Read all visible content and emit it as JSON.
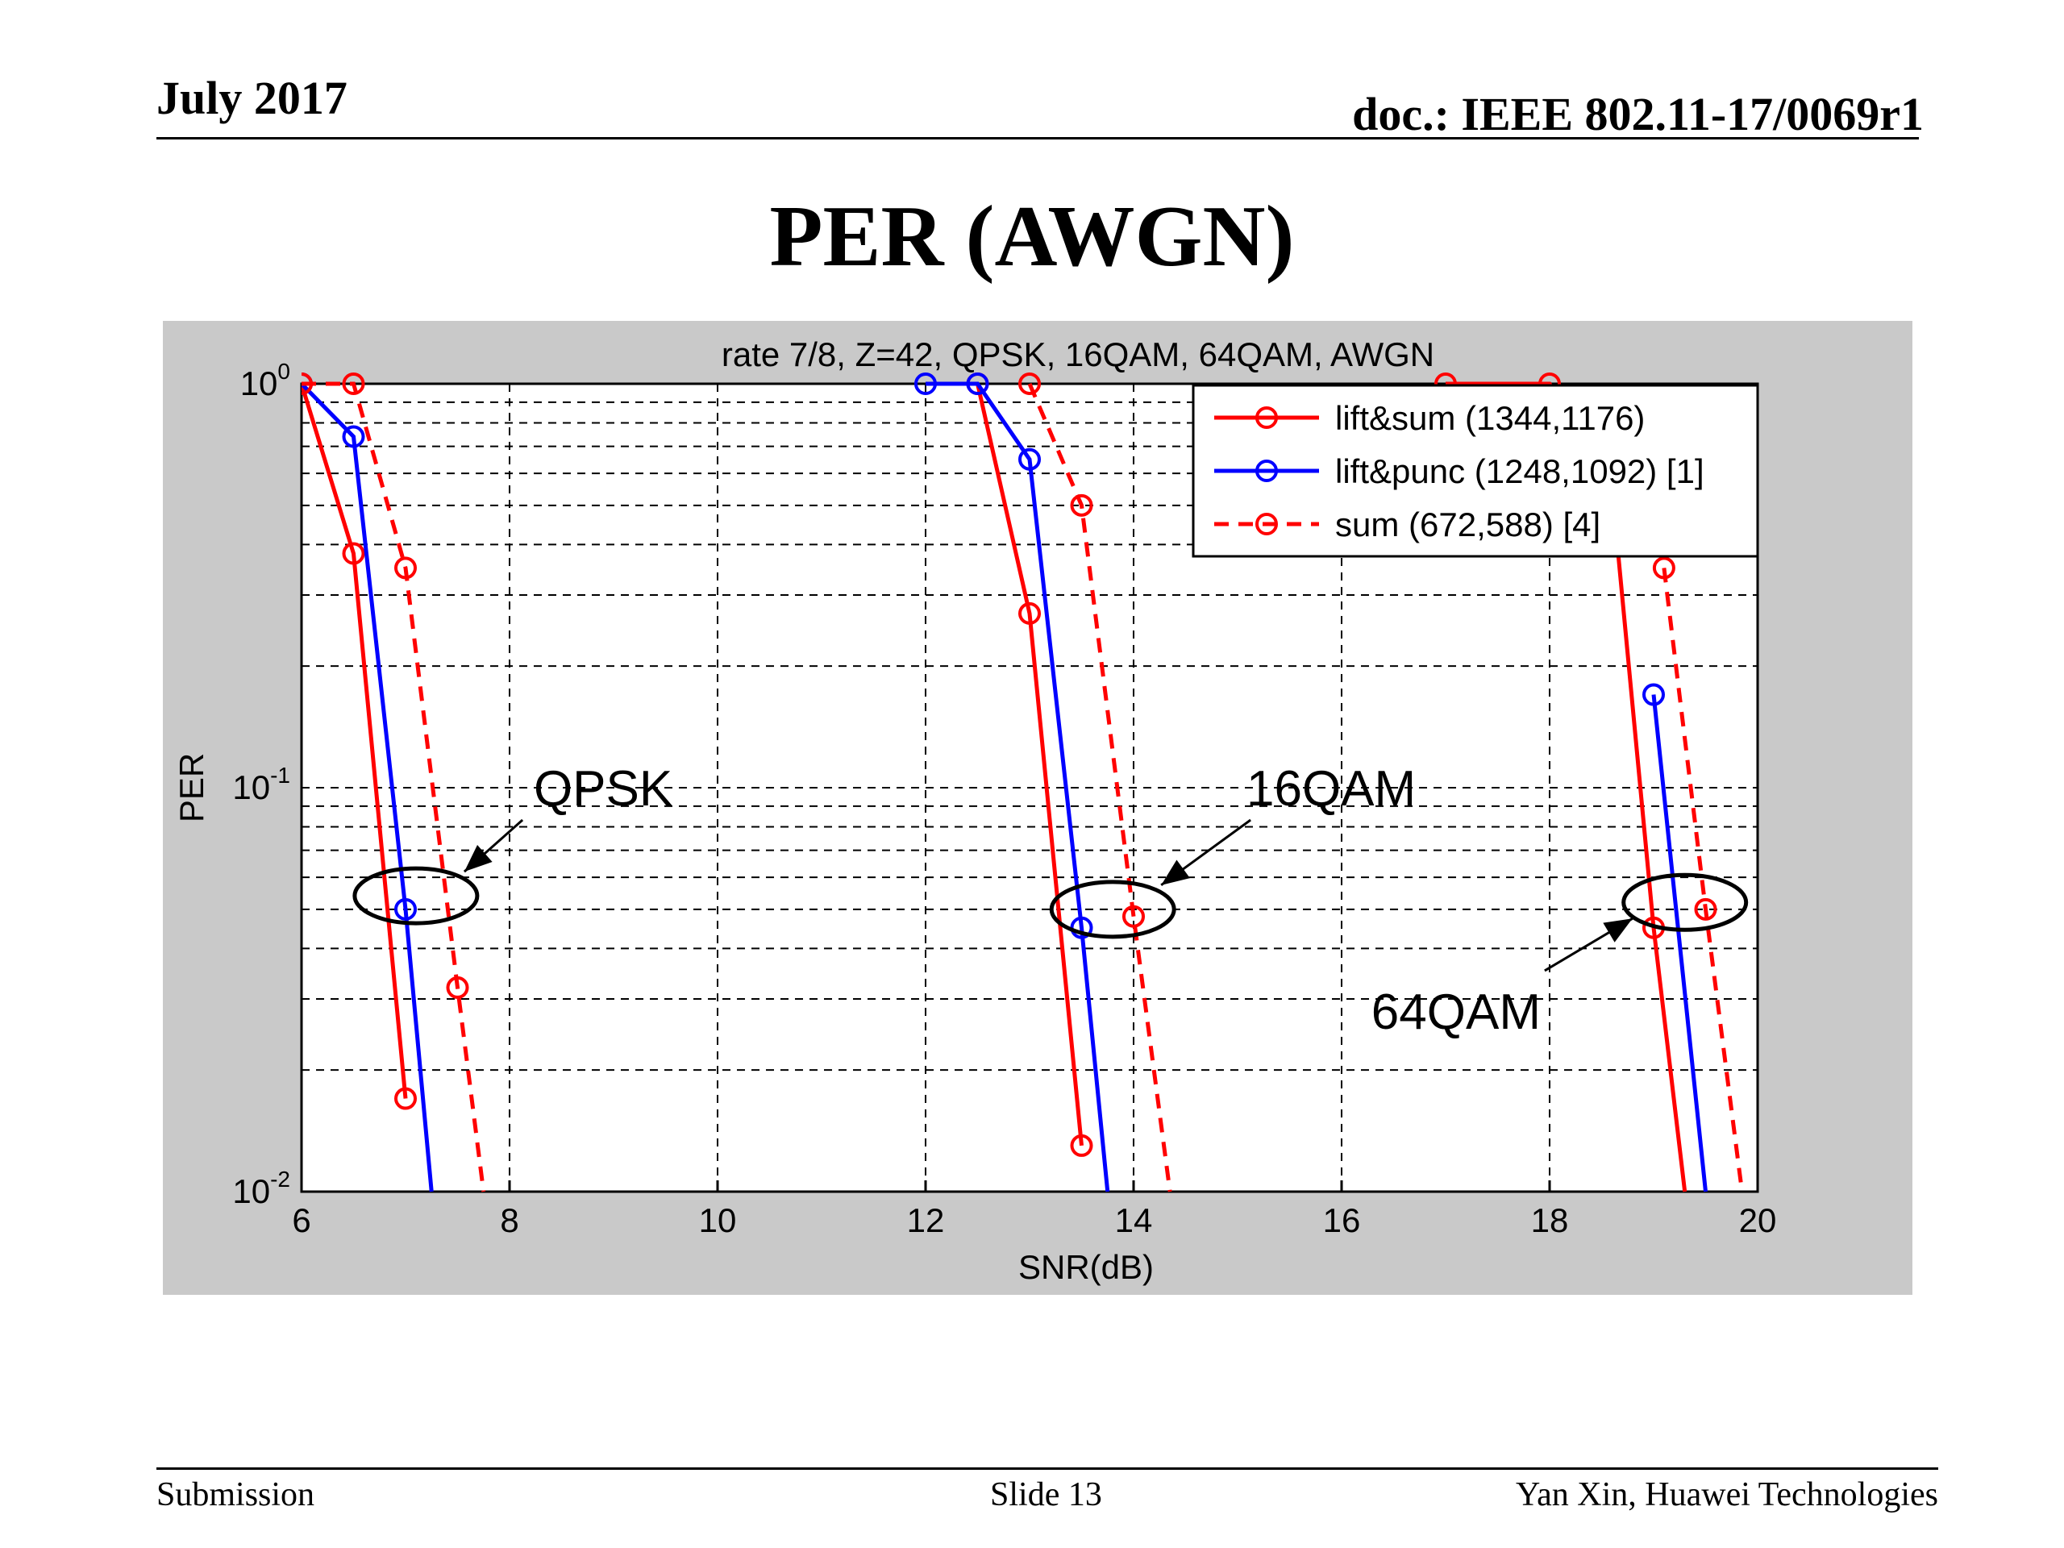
{
  "slide": {
    "date": "July 2017",
    "doc": "doc.: IEEE 802.11-17/0069r1",
    "title": "PER (AWGN)",
    "footer_left": "Submission",
    "footer_center": "Slide 13",
    "footer_right": "Yan Xin, Huawei Technologies"
  },
  "colors": {
    "red": "#ff0000",
    "blue": "#0000ff",
    "figure_bg": "#c9c9c9",
    "grid": "#000000"
  },
  "chart_data": {
    "type": "line",
    "title": "rate 7/8, Z=42, QPSK, 16QAM, 64QAM, AWGN",
    "xlabel": "SNR(dB)",
    "ylabel": "PER",
    "xlim": [
      6,
      20
    ],
    "ylim": [
      0.01,
      1
    ],
    "yscale": "log",
    "grid": true,
    "legend_position": "top-right",
    "x_ticks": [
      "6",
      "8",
      "10",
      "12",
      "14",
      "16",
      "18",
      "20"
    ],
    "y_ticks": [
      {
        "base": "10",
        "exp": "0",
        "value": 1
      },
      {
        "base": "10",
        "exp": "-1",
        "value": 0.1
      },
      {
        "base": "10",
        "exp": "-2",
        "value": 0.01
      }
    ],
    "series": [
      {
        "name": "lift&sum (1344,1176)",
        "color": "#ff0000",
        "dash": false,
        "segments": [
          [
            [
              6,
              1.0
            ],
            [
              6.5,
              0.38
            ],
            [
              7,
              0.017
            ]
          ],
          [
            [
              12.5,
              1.0
            ],
            [
              13,
              0.27
            ],
            [
              13.5,
              0.013
            ]
          ],
          [
            [
              17,
              1.0
            ],
            [
              18,
              1.0
            ],
            [
              18.6,
              0.55
            ],
            [
              19,
              0.045
            ],
            [
              19.3,
              0.01
            ]
          ]
        ]
      },
      {
        "name": "lift&punc (1248,1092) [1]",
        "color": "#0000ff",
        "dash": false,
        "segments": [
          [
            [
              6,
              1.0
            ],
            [
              6.5,
              0.74
            ],
            [
              7,
              0.05
            ],
            [
              7.25,
              0.01
            ]
          ],
          [
            [
              12,
              1.0
            ],
            [
              12.5,
              1.0
            ],
            [
              13,
              0.65
            ],
            [
              13.5,
              0.045
            ],
            [
              13.75,
              0.01
            ]
          ],
          [
            [
              19,
              0.17
            ],
            [
              19.5,
              0.01
            ]
          ]
        ]
      },
      {
        "name": "sum (672,588) [4]",
        "color": "#ff0000",
        "dash": true,
        "segments": [
          [
            [
              6,
              1.0
            ],
            [
              6.5,
              1.0
            ],
            [
              7,
              0.35
            ],
            [
              7.5,
              0.032
            ],
            [
              7.75,
              0.01
            ]
          ],
          [
            [
              13,
              1.0
            ],
            [
              13.5,
              0.5
            ],
            [
              14,
              0.048
            ],
            [
              14.35,
              0.01
            ]
          ],
          [
            [
              19.1,
              0.35
            ],
            [
              19.5,
              0.05
            ],
            [
              19.85,
              0.01
            ]
          ]
        ]
      }
    ],
    "annotations": [
      {
        "text": "QPSK",
        "x": 8.9,
        "y": 0.1
      },
      {
        "text": "16QAM",
        "x": 15.9,
        "y": 0.1
      },
      {
        "text": "64QAM",
        "x": 17.1,
        "y": 0.028
      }
    ],
    "ellipses": [
      {
        "cx": 7.1,
        "cy": 0.054
      },
      {
        "cx": 13.8,
        "cy": 0.05
      },
      {
        "cx": 19.3,
        "cy": 0.052
      }
    ]
  }
}
